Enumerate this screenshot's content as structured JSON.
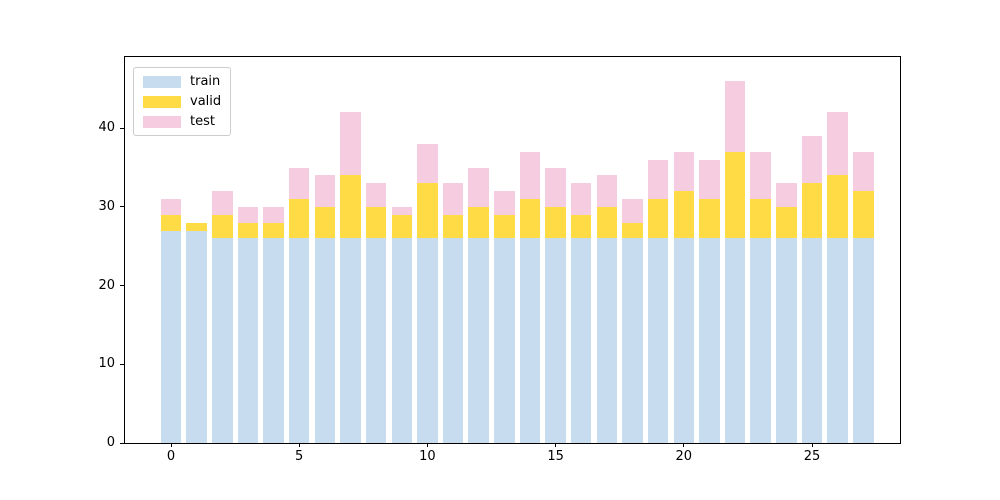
{
  "figure": {
    "background": "#ffffff",
    "frame_color": "#000000"
  },
  "chart_data": {
    "type": "bar",
    "stacked": true,
    "title": "",
    "xlabel": "",
    "ylabel": "",
    "grid": false,
    "legend_position": "upper left",
    "bar_width": 0.8,
    "x": [
      0,
      1,
      2,
      3,
      4,
      5,
      6,
      7,
      8,
      9,
      10,
      11,
      12,
      13,
      14,
      15,
      16,
      17,
      18,
      19,
      20,
      21,
      22,
      23,
      24,
      25,
      26,
      27
    ],
    "series": [
      {
        "name": "train",
        "color": "#C8DCF0",
        "values": [
          27,
          27,
          26,
          26,
          26,
          26,
          26,
          26,
          26,
          26,
          26,
          26,
          26,
          26,
          26,
          26,
          26,
          26,
          26,
          26,
          26,
          26,
          26,
          26,
          26,
          26,
          26,
          26
        ]
      },
      {
        "name": "valid",
        "color": "#FFDB45",
        "values": [
          2,
          1,
          3,
          2,
          2,
          5,
          4,
          8,
          4,
          3,
          7,
          3,
          4,
          3,
          5,
          4,
          3,
          4,
          2,
          5,
          6,
          5,
          11,
          5,
          4,
          7,
          8,
          6
        ]
      },
      {
        "name": "test",
        "color": "#F6CCE0",
        "values": [
          2,
          0,
          3,
          2,
          2,
          4,
          4,
          8,
          3,
          1,
          5,
          4,
          5,
          3,
          6,
          5,
          4,
          4,
          3,
          5,
          5,
          5,
          9,
          6,
          3,
          6,
          8,
          5
        ]
      }
    ],
    "stack_totals": [
      31,
      28,
      32,
      30,
      30,
      35,
      34,
      42,
      33,
      30,
      38,
      33,
      35,
      32,
      37,
      35,
      33,
      34,
      31,
      36,
      37,
      36,
      46,
      37,
      33,
      39,
      42,
      37
    ],
    "xticks": [
      0,
      5,
      10,
      15,
      20,
      25
    ],
    "yticks": [
      0,
      10,
      20,
      30,
      40
    ],
    "xlim": [
      -1.8,
      28.5
    ],
    "ylim": [
      0,
      49.05
    ]
  }
}
